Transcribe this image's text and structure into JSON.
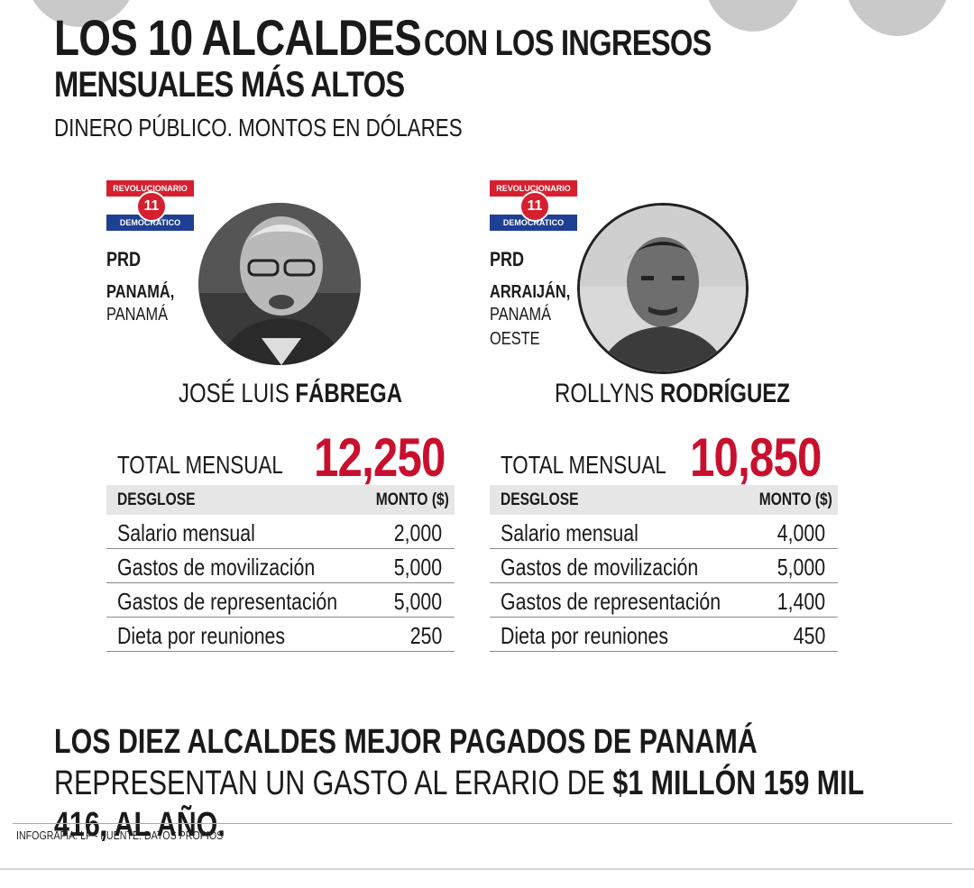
{
  "header": {
    "title_big": "LOS 10 ALCALDES",
    "title_rest": "CON LOS INGRESOS",
    "title_line2": "MENSUALES MÁS ALTOS",
    "subtitle": "DINERO PÚBLICO. MONTOS EN DÓLARES"
  },
  "party_logo": {
    "top_text": "REVOLUCIONARIO",
    "number": "11",
    "bottom_text": "DEMOCRATICO",
    "colors": {
      "red": "#d6202f",
      "blue": "#1f3f93"
    }
  },
  "mayors": [
    {
      "party": "PRD",
      "city": "PANAMÁ,",
      "region_lines": [
        "PANAMÁ"
      ],
      "first_name": "JOSÉ LUIS",
      "last_name": "FÁBREGA",
      "total_label": "TOTAL MENSUAL",
      "total_value": "12,250",
      "table": {
        "col_concept": "DESGLOSE",
        "col_amount": "MONTO ($)",
        "rows": [
          {
            "concept": "Salario mensual",
            "amount": "2,000"
          },
          {
            "concept": "Gastos de movilización",
            "amount": "5,000"
          },
          {
            "concept": "Gastos de representación",
            "amount": "5,000"
          },
          {
            "concept": "Dieta por reuniones",
            "amount": "250"
          }
        ]
      }
    },
    {
      "party": "PRD",
      "city": "ARRAIJÁN,",
      "region_lines": [
        "PANAMÁ",
        "OESTE"
      ],
      "first_name": "ROLLYNS",
      "last_name": "RODRÍGUEZ",
      "total_label": "TOTAL MENSUAL",
      "total_value": "10,850",
      "table": {
        "col_concept": "DESGLOSE",
        "col_amount": "MONTO ($)",
        "rows": [
          {
            "concept": "Salario mensual",
            "amount": "4,000"
          },
          {
            "concept": "Gastos de movilización",
            "amount": "5,000"
          },
          {
            "concept": "Gastos de representación",
            "amount": "1,400"
          },
          {
            "concept": "Dieta por reuniones",
            "amount": "450"
          }
        ]
      }
    }
  ],
  "bottom_note": {
    "bold_part": "LOS DIEZ ALCALDES MEJOR PAGADOS DE PANAMÁ",
    "regular_part": "REPRESENTAN UN GASTO AL ERARIO DE",
    "bold_amount": "$1 MILLÓN 159 MIL 416, AL AÑO."
  },
  "credit": "INFOGRAFÍA: LP - FUENTE: DATOS PROPIOS",
  "accent_color": "#c8102e"
}
